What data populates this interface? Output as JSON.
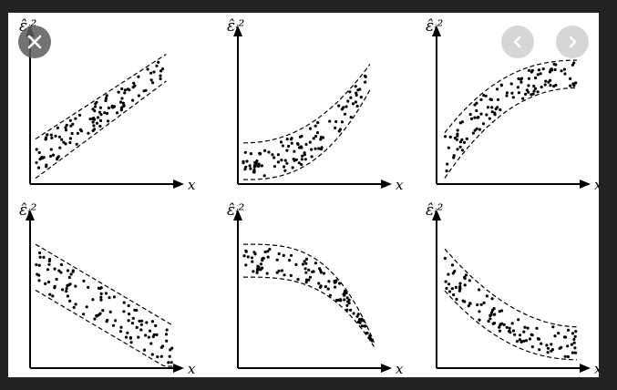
{
  "icons": {
    "close": "close-icon",
    "prev": "chevron-left-icon",
    "next": "chevron-right-icon"
  },
  "figure": {
    "panels": [
      {
        "pattern": "increasing-linear-band",
        "y_label": "ε̂ᵢ²",
        "x_label": "x"
      },
      {
        "pattern": "increasing-convex-band",
        "y_label": "ε̂ᵢ²",
        "x_label": "x"
      },
      {
        "pattern": "increasing-concave-band",
        "y_label": "ε̂ᵢ²",
        "x_label": "x"
      },
      {
        "pattern": "decreasing-linear-band",
        "y_label": "ε̂ᵢ²",
        "x_label": "x"
      },
      {
        "pattern": "decreasing-concave-band",
        "y_label": "ε̂ᵢ²",
        "x_label": "x"
      },
      {
        "pattern": "decreasing-convex-band",
        "y_label": "ε̂ᵢ²",
        "x_label": "x"
      }
    ]
  }
}
